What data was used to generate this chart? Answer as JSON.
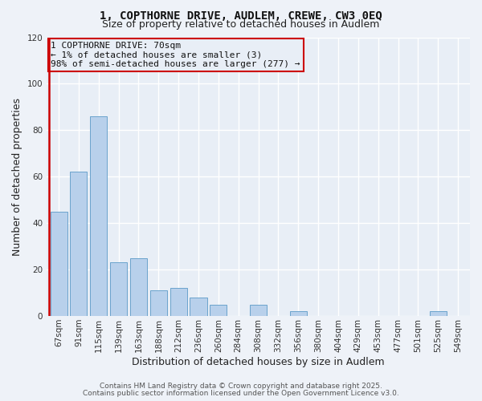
{
  "title": "1, COPTHORNE DRIVE, AUDLEM, CREWE, CW3 0EQ",
  "subtitle": "Size of property relative to detached houses in Audlem",
  "xlabel": "Distribution of detached houses by size in Audlem",
  "ylabel": "Number of detached properties",
  "categories": [
    "67sqm",
    "91sqm",
    "115sqm",
    "139sqm",
    "163sqm",
    "188sqm",
    "212sqm",
    "236sqm",
    "260sqm",
    "284sqm",
    "308sqm",
    "332sqm",
    "356sqm",
    "380sqm",
    "404sqm",
    "429sqm",
    "453sqm",
    "477sqm",
    "501sqm",
    "525sqm",
    "549sqm"
  ],
  "values": [
    45,
    62,
    86,
    23,
    25,
    11,
    12,
    8,
    5,
    0,
    5,
    0,
    2,
    0,
    0,
    0,
    0,
    0,
    0,
    2,
    0
  ],
  "bar_color": "#b8d0eb",
  "bar_edge_color": "#6aa3cc",
  "annotation_box_text": "1 COPTHORNE DRIVE: 70sqm\n← 1% of detached houses are smaller (3)\n98% of semi-detached houses are larger (277) →",
  "annotation_box_edge_color": "#cc0000",
  "red_line_color": "#cc0000",
  "ylim": [
    0,
    120
  ],
  "yticks": [
    0,
    20,
    40,
    60,
    80,
    100,
    120
  ],
  "background_color": "#eef2f8",
  "plot_bg_color": "#e8eef6",
  "grid_color": "#ffffff",
  "footer_line1": "Contains HM Land Registry data © Crown copyright and database right 2025.",
  "footer_line2": "Contains public sector information licensed under the Open Government Licence v3.0.",
  "title_fontsize": 10,
  "subtitle_fontsize": 9,
  "axis_label_fontsize": 9,
  "tick_fontsize": 7.5,
  "annotation_fontsize": 8,
  "footer_fontsize": 6.5
}
